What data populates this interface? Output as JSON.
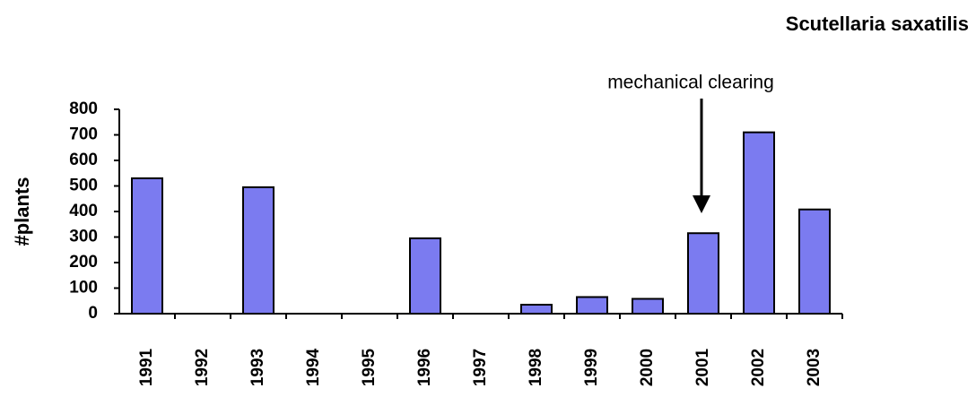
{
  "chart_data": {
    "type": "bar",
    "title": "Scutellaria saxatilis",
    "y_label": "#plants",
    "annotation": "mechanical clearing",
    "categories": [
      "1991",
      "1992",
      "1993",
      "1994",
      "1995",
      "1996",
      "1997",
      "1998",
      "1999",
      "2000",
      "2001",
      "2002",
      "2003"
    ],
    "values": [
      530,
      0,
      495,
      0,
      0,
      295,
      0,
      35,
      65,
      58,
      315,
      710,
      408
    ],
    "color": "#7b7bf0",
    "ylim": [
      0,
      800
    ],
    "yticks": [
      0,
      100,
      200,
      300,
      400,
      500,
      600,
      700,
      800
    ],
    "grid": false
  }
}
